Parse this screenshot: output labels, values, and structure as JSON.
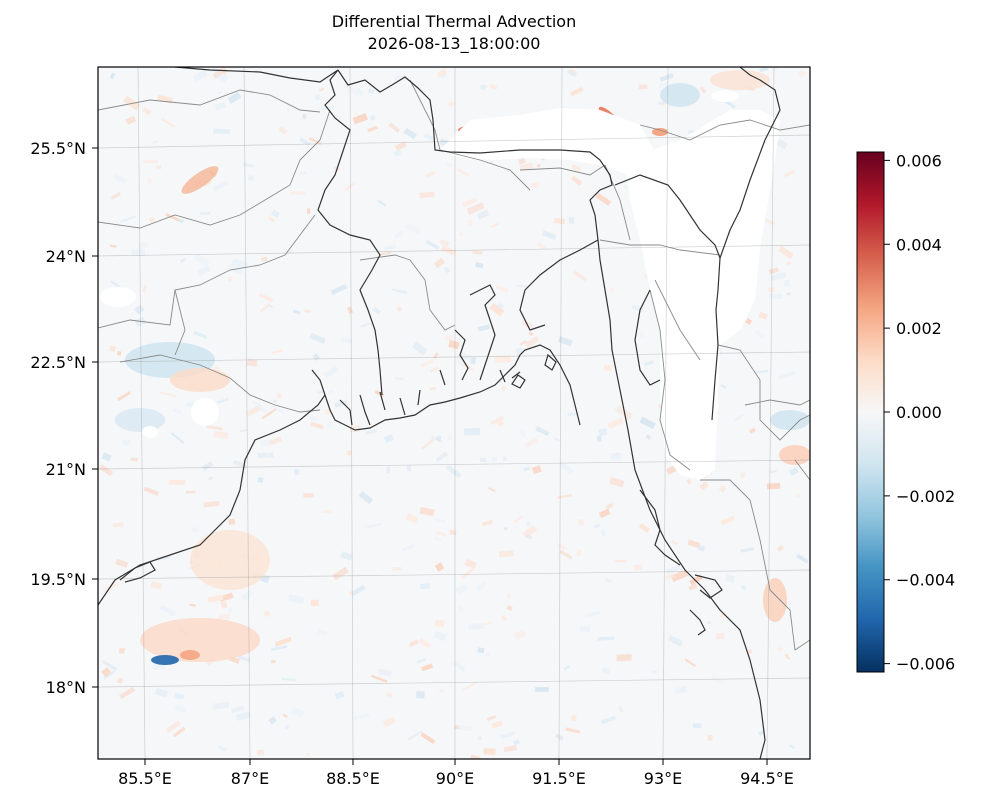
{
  "title": "Differential Thermal Advection",
  "subtitle": "2026-08-13_18:00:00",
  "map": {
    "projection": "lambert-conformal",
    "lon_labels": [
      "85.5°E",
      "87°E",
      "88.5°E",
      "90°E",
      "91.5°E",
      "93°E",
      "94.5°E"
    ],
    "lat_labels": [
      "25.5°N",
      "24°N",
      "22.5°N",
      "21°N",
      "19.5°N",
      "18°N"
    ],
    "features": [
      "coastline",
      "country-borders",
      "state-borders",
      "gridlines"
    ]
  },
  "colorbar": {
    "colormap": "RdBu_r",
    "min": -0.0062,
    "max": 0.0062,
    "ticks": [
      0.006,
      0.004,
      0.002,
      0.0,
      -0.002,
      -0.004,
      -0.006
    ],
    "tick_labels": [
      "0.006",
      "0.004",
      "0.002",
      "0.000",
      "−0.002",
      "−0.004",
      "−0.006"
    ]
  },
  "colors": {
    "neg_strong": "#053061",
    "pos_strong": "#67001f",
    "zero": "#f7f7f7"
  }
}
